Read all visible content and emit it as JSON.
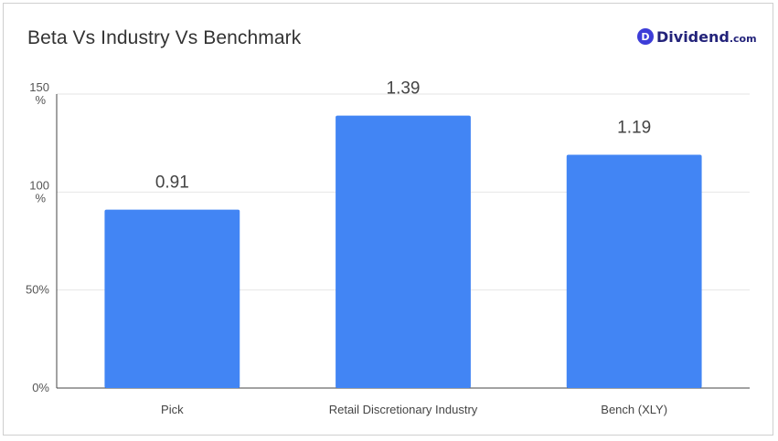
{
  "header": {
    "title": "Beta Vs Industry Vs Benchmark",
    "logo": {
      "badge": "D",
      "name": "Dividend",
      "suffix": ".com"
    }
  },
  "colors": {
    "bar": "#4285f4",
    "grid": "#e6e6e6",
    "axis": "#444444"
  },
  "chart_data": {
    "type": "bar",
    "title": "Beta Vs Industry Vs Benchmark",
    "xlabel": "",
    "ylabel": "",
    "categories": [
      "Pick",
      "Retail Discretionary Industry",
      "Bench (XLY)"
    ],
    "values": [
      0.91,
      1.39,
      1.19
    ],
    "value_labels": [
      "0.91",
      "1.39",
      "1.19"
    ],
    "ylim": [
      0,
      1.5
    ],
    "yticks": [
      {
        "value": 0,
        "label": "0%"
      },
      {
        "value": 0.5,
        "label": "50%"
      },
      {
        "value": 1.0,
        "label": "100\n%"
      },
      {
        "value": 1.5,
        "label": "150\n%"
      }
    ],
    "grid": true,
    "legend": "none"
  }
}
